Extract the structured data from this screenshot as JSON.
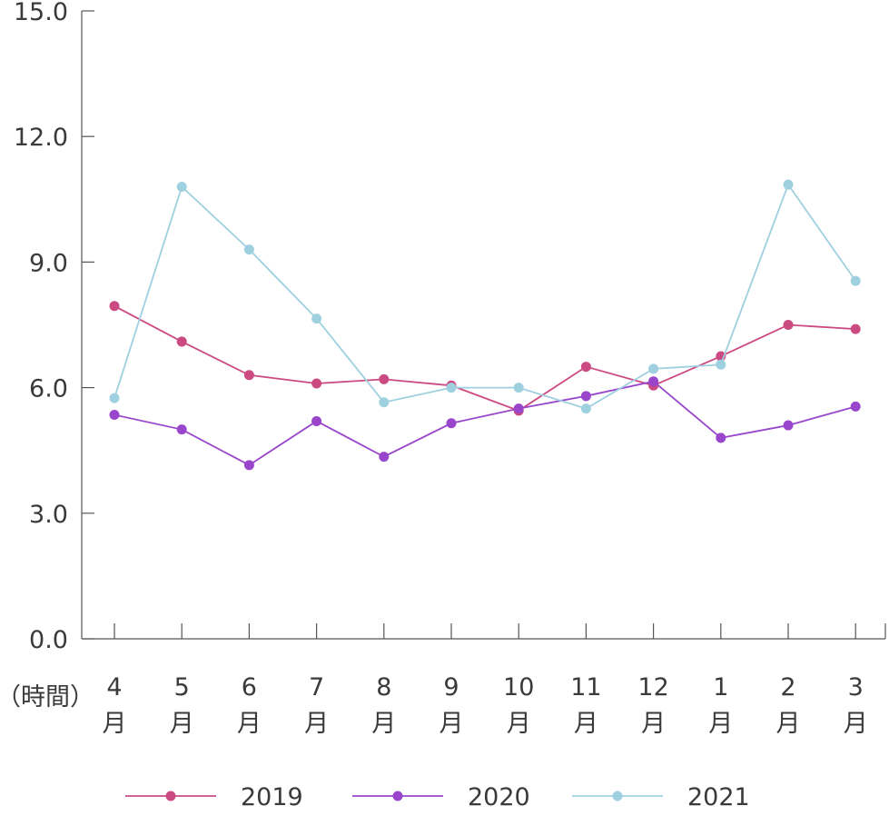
{
  "chart_data": {
    "type": "line",
    "xlabel": "（時間）",
    "ylabel": "",
    "ylim": [
      0,
      15
    ],
    "yticks": [
      "0.0",
      "3.0",
      "6.0",
      "9.0",
      "12.0",
      "15.0"
    ],
    "categories": [
      "4",
      "5",
      "6",
      "7",
      "8",
      "9",
      "10",
      "11",
      "12",
      "1",
      "2",
      "3"
    ],
    "month_suffix": "月",
    "grid": false,
    "legend_position": "bottom",
    "series": [
      {
        "name": "2019",
        "color": "#cc4a82",
        "values": [
          7.95,
          7.1,
          6.3,
          6.1,
          6.2,
          6.05,
          5.45,
          6.5,
          6.05,
          6.75,
          7.5,
          7.4
        ]
      },
      {
        "name": "2020",
        "color": "#9946cc",
        "values": [
          5.35,
          5.0,
          4.15,
          5.2,
          4.35,
          5.15,
          5.5,
          5.8,
          6.15,
          4.8,
          5.1,
          5.55
        ]
      },
      {
        "name": "2021",
        "color": "#9fd0df",
        "values": [
          5.75,
          10.8,
          9.3,
          7.65,
          5.65,
          6.0,
          6.0,
          5.5,
          6.45,
          6.55,
          10.85,
          8.55
        ]
      }
    ]
  }
}
